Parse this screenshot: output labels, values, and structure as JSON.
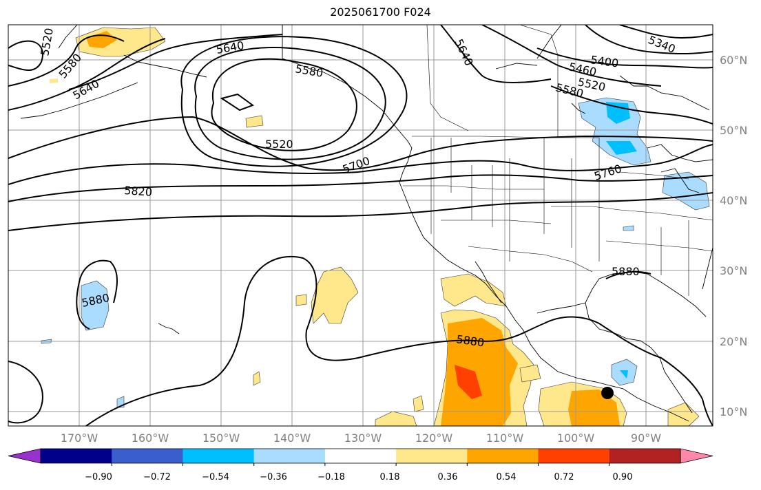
{
  "title": "2025061700 F024",
  "map": {
    "lat_labels": [
      "60°N",
      "50°N",
      "40°N",
      "30°N",
      "20°N",
      "10°N"
    ],
    "lon_labels": [
      "170°W",
      "160°W",
      "150°W",
      "140°W",
      "130°W",
      "120°W",
      "110°W",
      "100°W",
      "90°W"
    ],
    "lon_range": [
      -180,
      -80
    ],
    "lat_range": [
      8,
      65
    ],
    "contour_labels": [
      "5520",
      "5580",
      "5640",
      "5640",
      "5580",
      "5520",
      "5820",
      "5700",
      "5640",
      "5400",
      "5460",
      "5520",
      "5580",
      "5340",
      "5760",
      "5880",
      "5880",
      "5880"
    ],
    "marker": "storm-center-dot"
  },
  "colorbar": {
    "tick_labels": [
      "−0.90",
      "−0.72",
      "−0.54",
      "−0.36",
      "−0.18",
      "0.18",
      "0.36",
      "0.54",
      "0.72",
      "0.90"
    ],
    "colors": [
      "#9932cc",
      "#00008b",
      "#3a5fcd",
      "#00bfff",
      "#aadcff",
      "#ffffff",
      "#ffe88c",
      "#ffa500",
      "#ff4000",
      "#b22222",
      "#ff88aa"
    ],
    "extend": "both"
  }
}
